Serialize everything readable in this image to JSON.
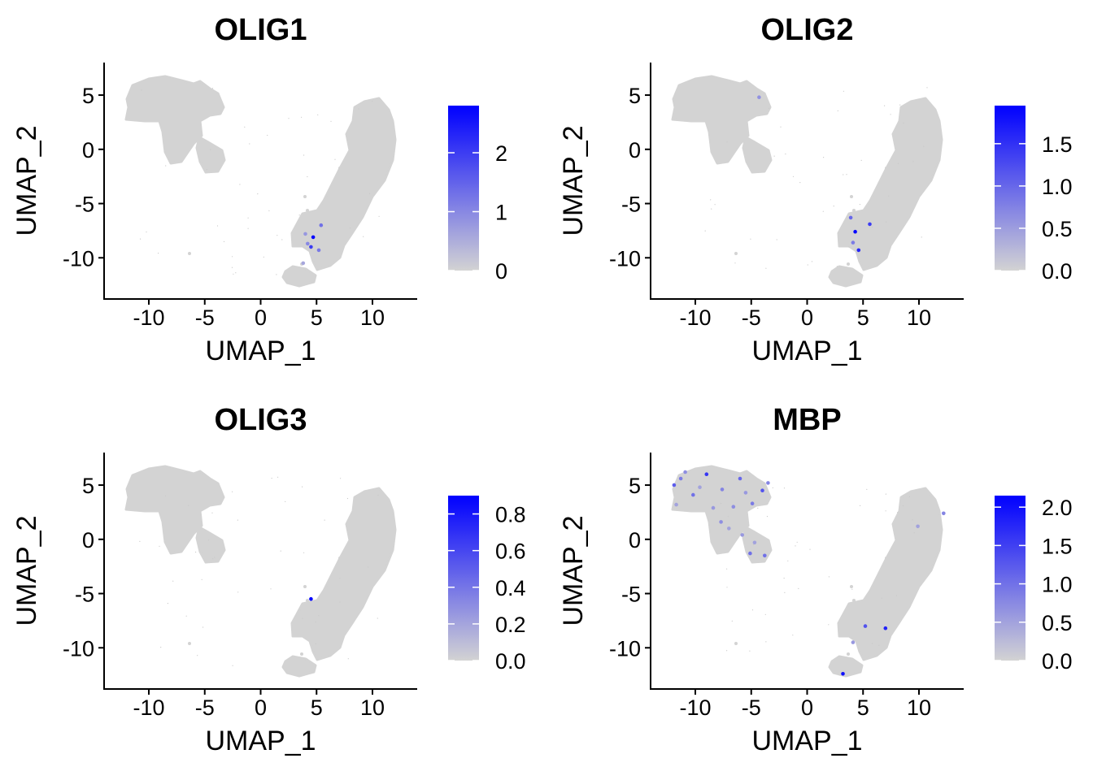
{
  "colors": {
    "low": "#d3d3d3",
    "high": "#0000ff",
    "axis": "#000000"
  },
  "chart_data": [
    {
      "type": "scatter",
      "title": "OLIG1",
      "xlabel": "UMAP_1",
      "ylabel": "UMAP_2",
      "xlim": [
        -14,
        14
      ],
      "ylim": [
        -13.8,
        8
      ],
      "xticks": [
        -10,
        -5,
        0,
        5,
        10
      ],
      "yticks": [
        5,
        0,
        -5,
        -10
      ],
      "xtick_labels": [
        "-10",
        "-5",
        "0",
        "5",
        "10"
      ],
      "ytick_labels": [
        "5",
        "0",
        "-5",
        "-10"
      ],
      "legend": {
        "position": "right",
        "min": 0,
        "max": 2.8,
        "ticks": [
          0,
          1,
          2
        ],
        "tick_labels": [
          "0",
          "1",
          "2"
        ]
      },
      "expressed_points": [
        {
          "x": 4.7,
          "y": -8.1,
          "value": 2.8
        },
        {
          "x": 4.5,
          "y": -9.0,
          "value": 2.0
        },
        {
          "x": 5.4,
          "y": -7.0,
          "value": 1.3
        },
        {
          "x": 4.2,
          "y": -8.7,
          "value": 1.0
        },
        {
          "x": 4.0,
          "y": -7.8,
          "value": 0.8
        },
        {
          "x": 5.2,
          "y": -9.3,
          "value": 1.2
        },
        {
          "x": 3.8,
          "y": -10.5,
          "value": 0.6
        }
      ]
    },
    {
      "type": "scatter",
      "title": "OLIG2",
      "xlabel": "UMAP_1",
      "ylabel": "UMAP_2",
      "xlim": [
        -14,
        14
      ],
      "ylim": [
        -13.8,
        8
      ],
      "xticks": [
        -10,
        -5,
        0,
        5,
        10
      ],
      "yticks": [
        5,
        0,
        -5,
        -10
      ],
      "xtick_labels": [
        "-10",
        "-5",
        "0",
        "5",
        "10"
      ],
      "ytick_labels": [
        "5",
        "0",
        "-5",
        "-10"
      ],
      "legend": {
        "position": "right",
        "min": 0,
        "max": 1.95,
        "ticks": [
          0,
          0.5,
          1.0,
          1.5
        ],
        "tick_labels": [
          "0.0",
          "0.5",
          "1.0",
          "1.5"
        ]
      },
      "expressed_points": [
        {
          "x": 4.3,
          "y": -7.6,
          "value": 1.9
        },
        {
          "x": 5.6,
          "y": -6.9,
          "value": 1.4
        },
        {
          "x": 3.9,
          "y": -6.3,
          "value": 1.0
        },
        {
          "x": 4.6,
          "y": -9.3,
          "value": 1.6
        },
        {
          "x": 4.1,
          "y": -8.6,
          "value": 0.8
        },
        {
          "x": -4.3,
          "y": 4.8,
          "value": 0.6
        }
      ]
    },
    {
      "type": "scatter",
      "title": "OLIG3",
      "xlabel": "UMAP_1",
      "ylabel": "UMAP_2",
      "xlim": [
        -14,
        14
      ],
      "ylim": [
        -13.8,
        8
      ],
      "xticks": [
        -10,
        -5,
        0,
        5,
        10
      ],
      "yticks": [
        5,
        0,
        -5,
        -10
      ],
      "xtick_labels": [
        "-10",
        "-5",
        "0",
        "5",
        "10"
      ],
      "ytick_labels": [
        "5",
        "0",
        "-5",
        "-10"
      ],
      "legend": {
        "position": "right",
        "min": 0,
        "max": 0.9,
        "ticks": [
          0,
          0.2,
          0.4,
          0.6,
          0.8
        ],
        "tick_labels": [
          "0.0",
          "0.2",
          "0.4",
          "0.6",
          "0.8"
        ]
      },
      "expressed_points": [
        {
          "x": 4.5,
          "y": -5.5,
          "value": 0.9
        }
      ]
    },
    {
      "type": "scatter",
      "title": "MBP",
      "xlabel": "UMAP_1",
      "ylabel": "UMAP_2",
      "xlim": [
        -14,
        14
      ],
      "ylim": [
        -13.8,
        8
      ],
      "xticks": [
        -10,
        -5,
        0,
        5,
        10
      ],
      "yticks": [
        5,
        0,
        -5,
        -10
      ],
      "xtick_labels": [
        "-10",
        "-5",
        "0",
        "5",
        "10"
      ],
      "ytick_labels": [
        "5",
        "0",
        "-5",
        "-10"
      ],
      "legend": {
        "position": "right",
        "min": 0,
        "max": 2.15,
        "ticks": [
          0,
          0.5,
          1.0,
          1.5,
          2.0
        ],
        "tick_labels": [
          "0.0",
          "0.5",
          "1.0",
          "1.5",
          "2.0"
        ]
      },
      "expressed_points": [
        {
          "x": -11.9,
          "y": 5.0,
          "value": 1.2
        },
        {
          "x": -11.3,
          "y": 5.6,
          "value": 0.9
        },
        {
          "x": -10.9,
          "y": 6.2,
          "value": 0.7
        },
        {
          "x": -10.2,
          "y": 4.1,
          "value": 1.0
        },
        {
          "x": -9.6,
          "y": 4.8,
          "value": 0.5
        },
        {
          "x": -9.0,
          "y": 6.0,
          "value": 1.6
        },
        {
          "x": -8.4,
          "y": 2.9,
          "value": 0.6
        },
        {
          "x": -7.6,
          "y": 4.6,
          "value": 0.8
        },
        {
          "x": -6.6,
          "y": 3.0,
          "value": 0.7
        },
        {
          "x": -6.0,
          "y": 5.6,
          "value": 1.1
        },
        {
          "x": -5.5,
          "y": 4.3,
          "value": 0.6
        },
        {
          "x": -4.9,
          "y": 3.3,
          "value": 0.9
        },
        {
          "x": -4.0,
          "y": 4.5,
          "value": 1.3
        },
        {
          "x": -3.5,
          "y": 5.2,
          "value": 0.8
        },
        {
          "x": -7.7,
          "y": 1.6,
          "value": 0.7
        },
        {
          "x": -5.8,
          "y": 0.4,
          "value": 0.6
        },
        {
          "x": -4.7,
          "y": -0.3,
          "value": 0.5
        },
        {
          "x": -5.1,
          "y": -1.3,
          "value": 1.0
        },
        {
          "x": -3.8,
          "y": -1.5,
          "value": 1.0
        },
        {
          "x": -11.7,
          "y": 3.2,
          "value": 0.5
        },
        {
          "x": -7.0,
          "y": 1.0,
          "value": 0.5
        },
        {
          "x": 5.2,
          "y": -8.0,
          "value": 1.3
        },
        {
          "x": 7.0,
          "y": -8.2,
          "value": 1.8
        },
        {
          "x": 3.2,
          "y": -12.4,
          "value": 2.0
        },
        {
          "x": 12.2,
          "y": 2.4,
          "value": 0.8
        },
        {
          "x": 9.9,
          "y": 1.2,
          "value": 0.5
        },
        {
          "x": 4.1,
          "y": -9.5,
          "value": 0.6
        }
      ]
    }
  ]
}
